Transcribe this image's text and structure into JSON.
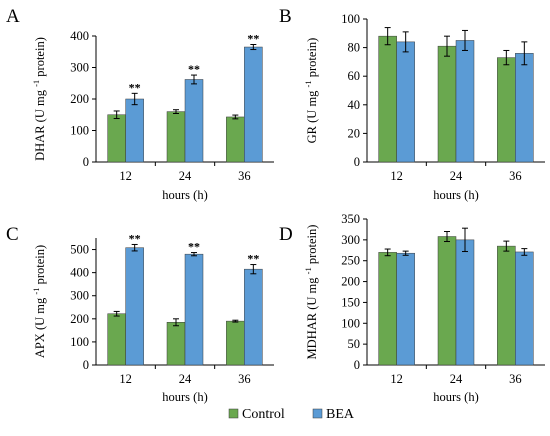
{
  "legend": {
    "items": [
      {
        "label": "Control",
        "color": "#6aa84f"
      },
      {
        "label": "BEA",
        "color": "#5b9bd5"
      }
    ]
  },
  "chart_data": [
    {
      "panel": "A",
      "type": "bar",
      "categories": [
        "12",
        "24",
        "36"
      ],
      "xlabel": "hours (h)",
      "ylabel": "DHAR (U mg⁻¹ protein)",
      "ylim": [
        0,
        400
      ],
      "yticks": [
        0,
        100,
        200,
        300,
        400
      ],
      "series": [
        {
          "name": "Control",
          "values": [
            150,
            160,
            143
          ],
          "errors": [
            12,
            6,
            6
          ]
        },
        {
          "name": "BEA",
          "values": [
            200,
            262,
            365
          ],
          "errors": [
            18,
            14,
            8
          ]
        }
      ],
      "annotations": [
        "**",
        "**",
        "**"
      ]
    },
    {
      "panel": "B",
      "type": "bar",
      "categories": [
        "12",
        "24",
        "36"
      ],
      "xlabel": "hours (h)",
      "ylabel": "GR (U mg⁻¹ protein)",
      "ylim": [
        0,
        100
      ],
      "yticks": [
        0,
        20,
        40,
        60,
        80,
        100
      ],
      "series": [
        {
          "name": "Control",
          "values": [
            88,
            81,
            73
          ],
          "errors": [
            6,
            7,
            5
          ]
        },
        {
          "name": "BEA",
          "values": [
            84,
            85,
            76
          ],
          "errors": [
            7,
            7,
            8
          ]
        }
      ],
      "annotations": [
        "",
        "",
        ""
      ]
    },
    {
      "panel": "C",
      "type": "bar",
      "categories": [
        "12",
        "24",
        "36"
      ],
      "xlabel": "hours (h)",
      "ylabel": "APX (U mg⁻¹ protein)",
      "ylim": [
        0,
        550
      ],
      "yticks": [
        0,
        100,
        200,
        300,
        400,
        500
      ],
      "series": [
        {
          "name": "Control",
          "values": [
            222,
            185,
            190
          ],
          "errors": [
            10,
            15,
            4
          ]
        },
        {
          "name": "BEA",
          "values": [
            508,
            480,
            415
          ],
          "errors": [
            14,
            7,
            20
          ]
        }
      ],
      "annotations": [
        "**",
        "**",
        "**"
      ]
    },
    {
      "panel": "D",
      "type": "bar",
      "categories": [
        "12",
        "24",
        "36"
      ],
      "xlabel": "hours (h)",
      "ylabel": "MDHAR (U mg⁻¹ protein)",
      "ylim": [
        0,
        350
      ],
      "yticks": [
        0,
        50,
        100,
        150,
        200,
        250,
        300,
        350
      ],
      "series": [
        {
          "name": "Control",
          "values": [
            270,
            308,
            285
          ],
          "errors": [
            8,
            12,
            12
          ]
        },
        {
          "name": "BEA",
          "values": [
            268,
            300,
            271
          ],
          "errors": [
            5,
            28,
            8
          ]
        }
      ],
      "annotations": [
        "",
        "",
        ""
      ]
    }
  ]
}
